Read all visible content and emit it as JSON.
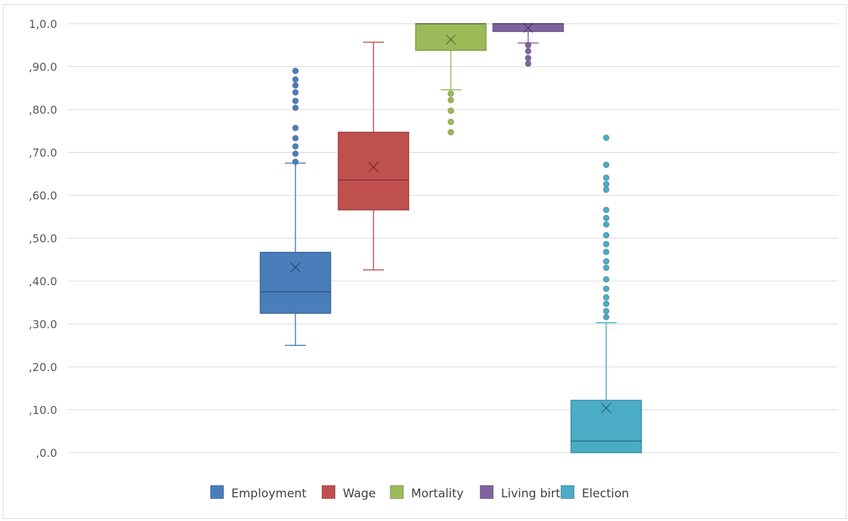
{
  "chart_data": {
    "type": "boxplot",
    "ylim": [
      0,
      1.0
    ],
    "y_ticks": [
      ",0.0",
      ",10.0",
      ",20.0",
      ",30.0",
      ",40.0",
      ",50.0",
      ",60.0",
      ",70.0",
      ",80.0",
      ",90.0",
      "1,0.0"
    ],
    "grid": true,
    "legend_position": "bottom",
    "series": [
      {
        "name": "Employment",
        "color": "#4a7ebb",
        "whisker_low": 0.25,
        "q1": 0.325,
        "median": 0.375,
        "q3": 0.467,
        "whisker_high": 0.675,
        "mean": 0.432,
        "outliers": [
          0.678,
          0.697,
          0.714,
          0.733,
          0.757,
          0.804,
          0.82,
          0.84,
          0.856,
          0.87,
          0.89
        ]
      },
      {
        "name": "Wage",
        "color": "#c0504d",
        "whisker_low": 0.426,
        "q1": 0.566,
        "median": 0.636,
        "q3": 0.747,
        "whisker_high": 0.957,
        "mean": 0.666,
        "outliers": []
      },
      {
        "name": "Mortality",
        "color": "#9bbb59",
        "whisker_low": 0.846,
        "q1": 0.938,
        "median": 1.0,
        "q3": 1.0,
        "whisker_high": 1.0,
        "mean": 0.963,
        "outliers": [
          0.747,
          0.771,
          0.797,
          0.822,
          0.837
        ]
      },
      {
        "name": "Living birth",
        "color": "#8064a2",
        "whisker_low": 0.955,
        "q1": 0.982,
        "median": 1.0,
        "q3": 1.0,
        "whisker_high": 1.0,
        "mean": 0.99,
        "outliers": [
          0.907,
          0.92,
          0.936,
          0.95
        ]
      },
      {
        "name": "Election",
        "color": "#4bacc6",
        "whisker_low": 0.0,
        "q1": 0.0,
        "median": 0.027,
        "q3": 0.122,
        "whisker_high": 0.303,
        "mean": 0.104,
        "outliers": [
          0.316,
          0.33,
          0.347,
          0.362,
          0.382,
          0.404,
          0.431,
          0.446,
          0.468,
          0.486,
          0.507,
          0.532,
          0.547,
          0.566,
          0.613,
          0.626,
          0.641,
          0.671,
          0.734
        ]
      }
    ]
  }
}
